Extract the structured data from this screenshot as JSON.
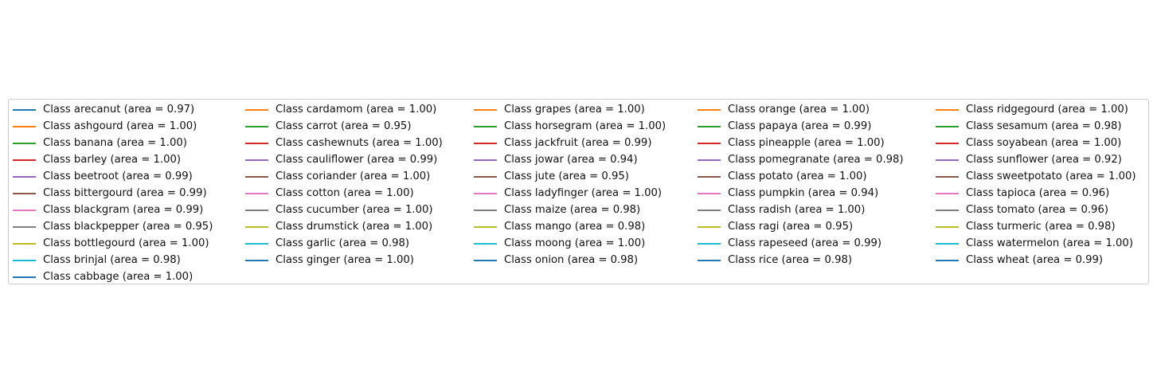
{
  "chart_data": {
    "type": "line",
    "title": "",
    "xlabel": "",
    "ylabel": "",
    "legend_placement": "center",
    "legend_columns": 5,
    "palette": [
      "#1f77b4",
      "#ff7f0e",
      "#2ca02c",
      "#d62728",
      "#9467bd",
      "#8c564b",
      "#e377c2",
      "#7f7f7f",
      "#bcbd22",
      "#17becf"
    ],
    "series": [
      {
        "name": "Class arecanut (area = 0.97)",
        "class": "arecanut",
        "auc": 0.97
      },
      {
        "name": "Class ashgourd (area = 1.00)",
        "class": "ashgourd",
        "auc": 1.0
      },
      {
        "name": "Class banana (area = 1.00)",
        "class": "banana",
        "auc": 1.0
      },
      {
        "name": "Class barley (area = 1.00)",
        "class": "barley",
        "auc": 1.0
      },
      {
        "name": "Class beetroot (area = 0.99)",
        "class": "beetroot",
        "auc": 0.99
      },
      {
        "name": "Class bittergourd (area = 0.99)",
        "class": "bittergourd",
        "auc": 0.99
      },
      {
        "name": "Class blackgram (area = 0.99)",
        "class": "blackgram",
        "auc": 0.99
      },
      {
        "name": "Class blackpepper (area = 0.95)",
        "class": "blackpepper",
        "auc": 0.95
      },
      {
        "name": "Class bottlegourd (area = 1.00)",
        "class": "bottlegourd",
        "auc": 1.0
      },
      {
        "name": "Class brinjal (area = 0.98)",
        "class": "brinjal",
        "auc": 0.98
      },
      {
        "name": "Class cabbage (area = 1.00)",
        "class": "cabbage",
        "auc": 1.0
      },
      {
        "name": "Class cardamom (area = 1.00)",
        "class": "cardamom",
        "auc": 1.0
      },
      {
        "name": "Class carrot (area = 0.95)",
        "class": "carrot",
        "auc": 0.95
      },
      {
        "name": "Class cashewnuts (area = 1.00)",
        "class": "cashewnuts",
        "auc": 1.0
      },
      {
        "name": "Class cauliflower (area = 0.99)",
        "class": "cauliflower",
        "auc": 0.99
      },
      {
        "name": "Class coriander (area = 1.00)",
        "class": "coriander",
        "auc": 1.0
      },
      {
        "name": "Class cotton (area = 1.00)",
        "class": "cotton",
        "auc": 1.0
      },
      {
        "name": "Class cucumber (area = 1.00)",
        "class": "cucumber",
        "auc": 1.0
      },
      {
        "name": "Class drumstick (area = 1.00)",
        "class": "drumstick",
        "auc": 1.0
      },
      {
        "name": "Class garlic (area = 0.98)",
        "class": "garlic",
        "auc": 0.98
      },
      {
        "name": "Class ginger (area = 1.00)",
        "class": "ginger",
        "auc": 1.0
      },
      {
        "name": "Class grapes (area = 1.00)",
        "class": "grapes",
        "auc": 1.0
      },
      {
        "name": "Class horsegram (area = 1.00)",
        "class": "horsegram",
        "auc": 1.0
      },
      {
        "name": "Class jackfruit (area = 0.99)",
        "class": "jackfruit",
        "auc": 0.99
      },
      {
        "name": "Class jowar (area = 0.94)",
        "class": "jowar",
        "auc": 0.94
      },
      {
        "name": "Class jute (area = 0.95)",
        "class": "jute",
        "auc": 0.95
      },
      {
        "name": "Class ladyfinger (area = 1.00)",
        "class": "ladyfinger",
        "auc": 1.0
      },
      {
        "name": "Class maize (area = 0.98)",
        "class": "maize",
        "auc": 0.98
      },
      {
        "name": "Class mango (area = 0.98)",
        "class": "mango",
        "auc": 0.98
      },
      {
        "name": "Class moong (area = 1.00)",
        "class": "moong",
        "auc": 1.0
      },
      {
        "name": "Class onion (area = 0.98)",
        "class": "onion",
        "auc": 0.98
      },
      {
        "name": "Class orange (area = 1.00)",
        "class": "orange",
        "auc": 1.0
      },
      {
        "name": "Class papaya (area = 0.99)",
        "class": "papaya",
        "auc": 0.99
      },
      {
        "name": "Class pineapple (area = 1.00)",
        "class": "pineapple",
        "auc": 1.0
      },
      {
        "name": "Class pomegranate (area = 0.98)",
        "class": "pomegranate",
        "auc": 0.98
      },
      {
        "name": "Class potato (area = 1.00)",
        "class": "potato",
        "auc": 1.0
      },
      {
        "name": "Class pumpkin (area = 0.94)",
        "class": "pumpkin",
        "auc": 0.94
      },
      {
        "name": "Class radish (area = 1.00)",
        "class": "radish",
        "auc": 1.0
      },
      {
        "name": "Class ragi (area = 0.95)",
        "class": "ragi",
        "auc": 0.95
      },
      {
        "name": "Class rapeseed (area = 0.99)",
        "class": "rapeseed",
        "auc": 0.99
      },
      {
        "name": "Class rice (area = 0.98)",
        "class": "rice",
        "auc": 0.98
      },
      {
        "name": "Class ridgegourd (area = 1.00)",
        "class": "ridgegourd",
        "auc": 1.0
      },
      {
        "name": "Class sesamum (area = 0.98)",
        "class": "sesamum",
        "auc": 0.98
      },
      {
        "name": "Class soyabean (area = 1.00)",
        "class": "soyabean",
        "auc": 1.0
      },
      {
        "name": "Class sunflower (area = 0.92)",
        "class": "sunflower",
        "auc": 0.92
      },
      {
        "name": "Class sweetpotato (area = 1.00)",
        "class": "sweetpotato",
        "auc": 1.0
      },
      {
        "name": "Class tapioca (area = 0.96)",
        "class": "tapioca",
        "auc": 0.96
      },
      {
        "name": "Class tomato (area = 0.96)",
        "class": "tomato",
        "auc": 0.96
      },
      {
        "name": "Class turmeric (area = 0.98)",
        "class": "turmeric",
        "auc": 0.98
      },
      {
        "name": "Class watermelon (area = 1.00)",
        "class": "watermelon",
        "auc": 1.0
      },
      {
        "name": "Class wheat (area = 0.99)",
        "class": "wheat",
        "auc": 0.99
      }
    ]
  }
}
